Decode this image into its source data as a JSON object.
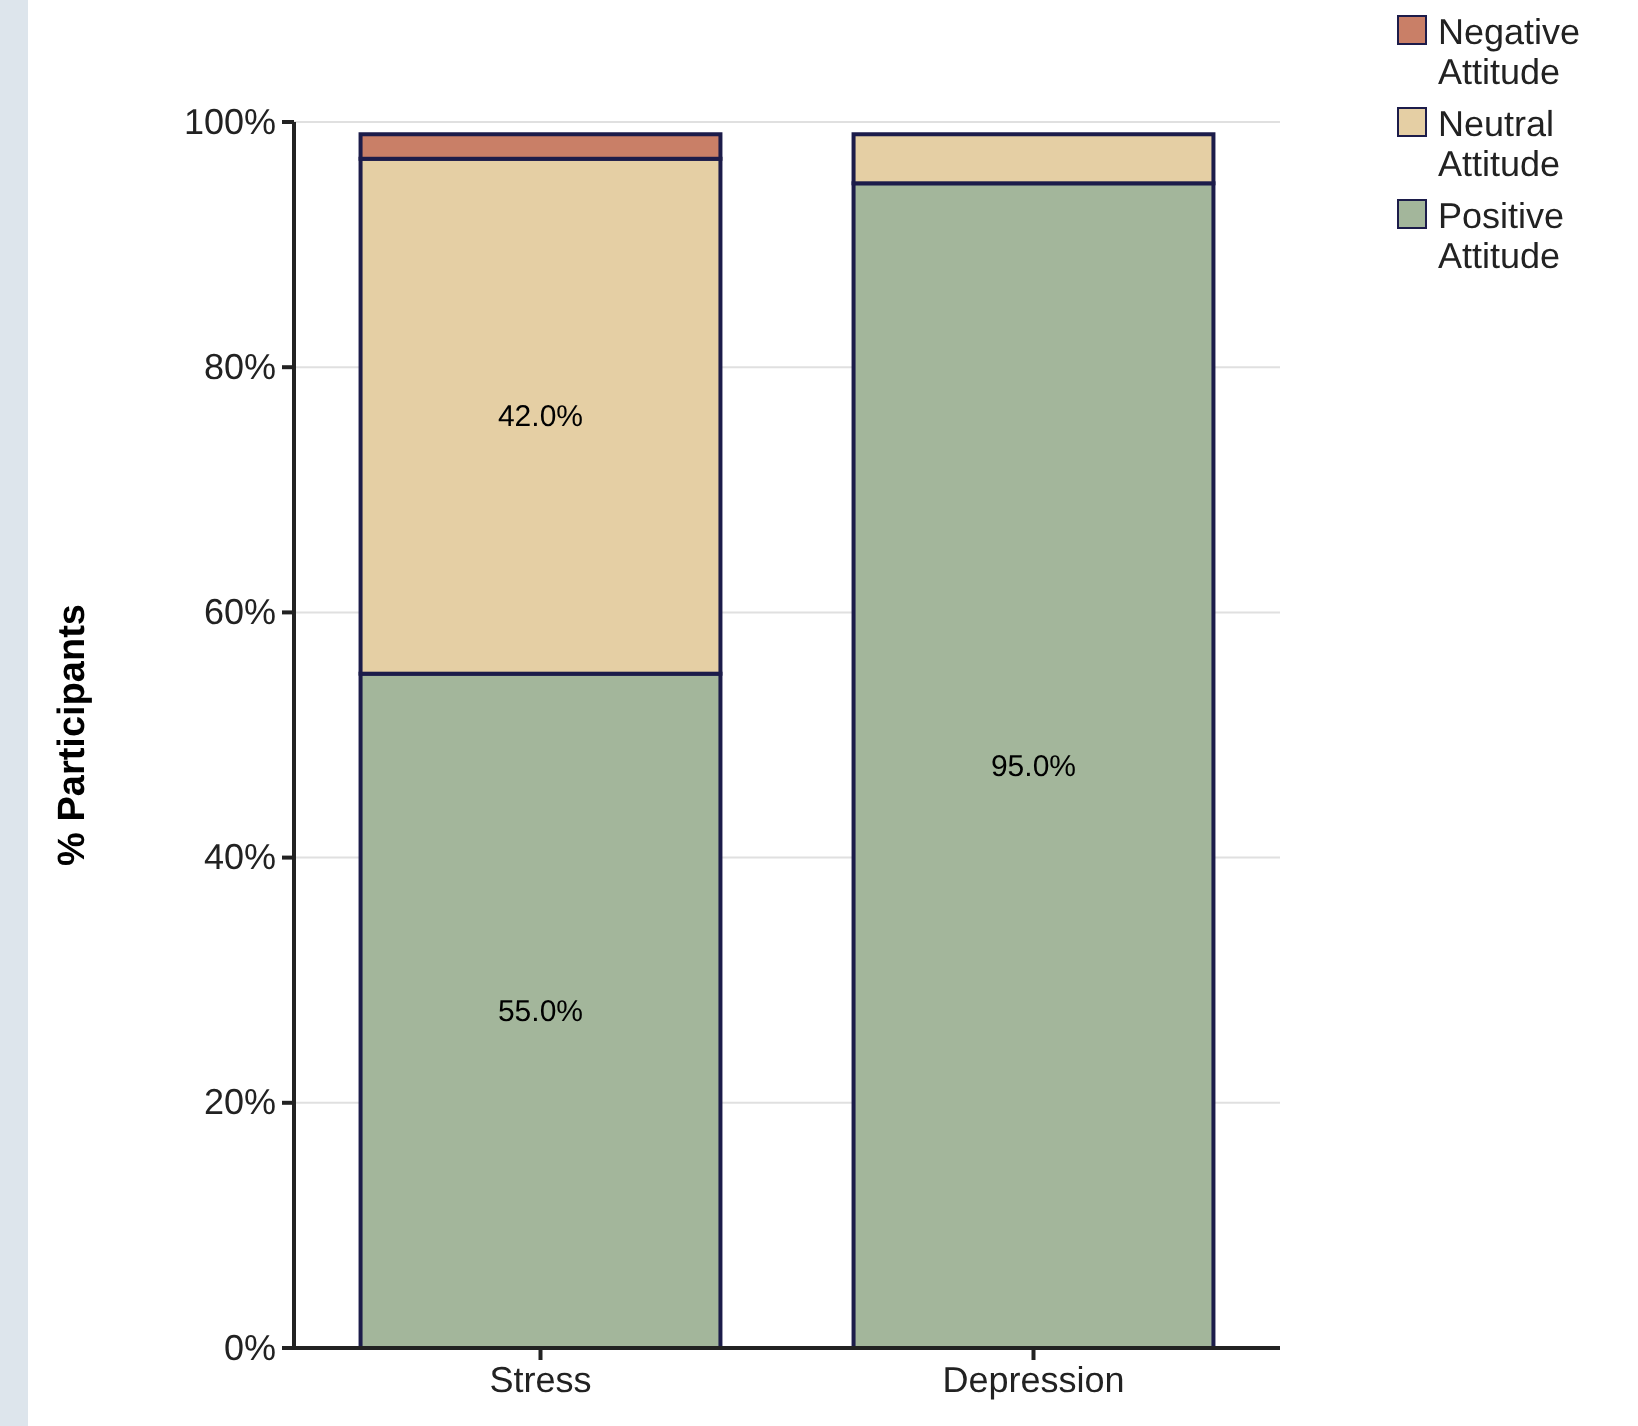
{
  "chart_data": {
    "type": "bar",
    "stacked": true,
    "ylabel": "% Participants",
    "categories": [
      "Stress",
      "Depression"
    ],
    "series": [
      {
        "name": "Positive Attitude",
        "color": "#a3b69b",
        "values": [
          55,
          95
        ],
        "value_labels": [
          "55.0%",
          "95.0%"
        ]
      },
      {
        "name": "Neutral Attitude",
        "color": "#e5cfa4",
        "values": [
          42,
          4
        ],
        "value_labels": [
          "42.0%",
          null
        ]
      },
      {
        "name": "Negative Attitude",
        "color": "#c97f67",
        "values": [
          2,
          0
        ],
        "value_labels": [
          null,
          null
        ]
      }
    ],
    "ylim": [
      0,
      100
    ],
    "yticks": [
      {
        "value": 0,
        "label": "0%"
      },
      {
        "value": 20,
        "label": "20%"
      },
      {
        "value": 40,
        "label": "40%"
      },
      {
        "value": 60,
        "label": "60%"
      },
      {
        "value": 80,
        "label": "80%"
      },
      {
        "value": 100,
        "label": "100%"
      }
    ],
    "grid": "y",
    "legend": "top right"
  }
}
